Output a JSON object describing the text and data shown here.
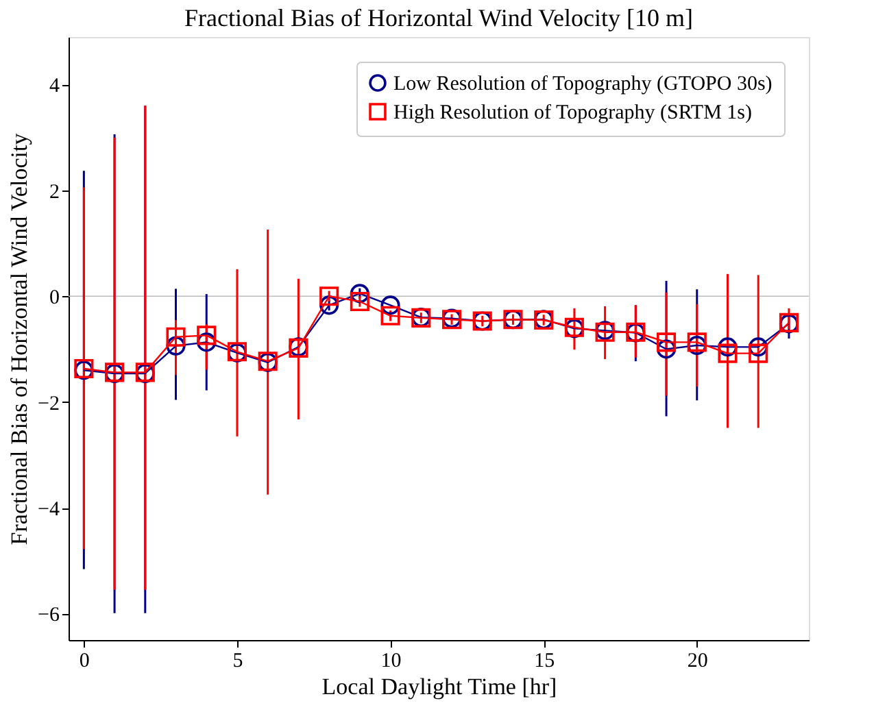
{
  "chart_data": {
    "type": "line",
    "title": "Fractional Bias of Horizontal Wind Velocity [10 m]",
    "xlabel": "Local Daylight Time [hr]",
    "ylabel": "Fractional Bias of Horizontal Wind Velocity",
    "x": [
      0,
      1,
      2,
      3,
      4,
      5,
      6,
      7,
      8,
      9,
      10,
      11,
      12,
      13,
      14,
      15,
      16,
      17,
      18,
      19,
      20,
      21,
      22,
      23
    ],
    "series": [
      {
        "name": "Low Resolution of Topography (GTOPO 30s)",
        "color": "#00008b",
        "marker": "circle",
        "values": [
          -1.4,
          -1.46,
          -1.46,
          -0.94,
          -0.87,
          -1.07,
          -1.25,
          -0.96,
          -0.17,
          0.05,
          -0.17,
          -0.4,
          -0.42,
          -0.47,
          -0.44,
          -0.44,
          -0.61,
          -0.65,
          -0.69,
          -1.0,
          -0.93,
          -0.96,
          -0.96,
          -0.52
        ],
        "errors": [
          [
            -5.16,
            2.37
          ],
          [
            -5.99,
            3.06
          ],
          [
            -5.99,
            3.6
          ],
          [
            -1.96,
            0.14
          ],
          [
            -1.78,
            0.04
          ],
          null,
          null,
          null,
          [
            -0.27,
            -0.07
          ],
          [
            -0.05,
            0.15
          ],
          null,
          null,
          null,
          null,
          null,
          null,
          null,
          null,
          [
            -1.23,
            -0.17
          ],
          [
            -2.27,
            0.29
          ],
          [
            -1.97,
            0.13
          ],
          null,
          null,
          [
            -0.8,
            -0.32
          ]
        ]
      },
      {
        "name": "High Resolution of Topography (SRTM 1s)",
        "color": "#ff0000",
        "marker": "square",
        "values": [
          -1.37,
          -1.44,
          -1.44,
          -0.77,
          -0.74,
          -1.05,
          -1.23,
          -0.98,
          0.0,
          -0.1,
          -0.37,
          -0.41,
          -0.44,
          -0.47,
          -0.44,
          -0.45,
          -0.59,
          -0.68,
          -0.68,
          -0.87,
          -0.87,
          -1.08,
          -1.08,
          -0.5
        ],
        "errors": [
          [
            -4.78,
            2.06
          ],
          [
            -5.55,
            3.0
          ],
          [
            -5.55,
            3.6
          ],
          [
            -1.49,
            -0.45
          ],
          [
            -1.39,
            -0.53
          ],
          [
            -2.65,
            0.51
          ],
          [
            -3.75,
            1.26
          ],
          [
            -2.33,
            0.33
          ],
          [
            -0.1,
            0.1
          ],
          [
            -0.2,
            0.0
          ],
          [
            -0.47,
            -0.27
          ],
          [
            -0.51,
            -0.31
          ],
          [
            -0.54,
            -0.34
          ],
          [
            -0.57,
            -0.37
          ],
          [
            -0.54,
            -0.34
          ],
          [
            -0.55,
            -0.35
          ],
          [
            -1.01,
            -0.23
          ],
          [
            -1.19,
            -0.19
          ],
          [
            -1.16,
            -0.17
          ],
          [
            -1.88,
            0.07
          ],
          [
            -1.71,
            -0.15
          ],
          [
            -2.49,
            0.42
          ],
          [
            -2.49,
            0.4
          ],
          [
            -0.62,
            -0.23
          ]
        ]
      }
    ],
    "xlim": [
      -0.5,
      23.65
    ],
    "ylim": [
      -6.5,
      4.9
    ],
    "xticks": [
      0,
      5,
      10,
      15,
      20
    ],
    "yticks": [
      -6,
      -4,
      -2,
      0,
      2,
      4
    ],
    "ref_lines": [
      {
        "axis": "y",
        "value": 0,
        "color": "#bbbbbb"
      }
    ],
    "grid": false,
    "legend": "top right",
    "line_style": "solid"
  }
}
